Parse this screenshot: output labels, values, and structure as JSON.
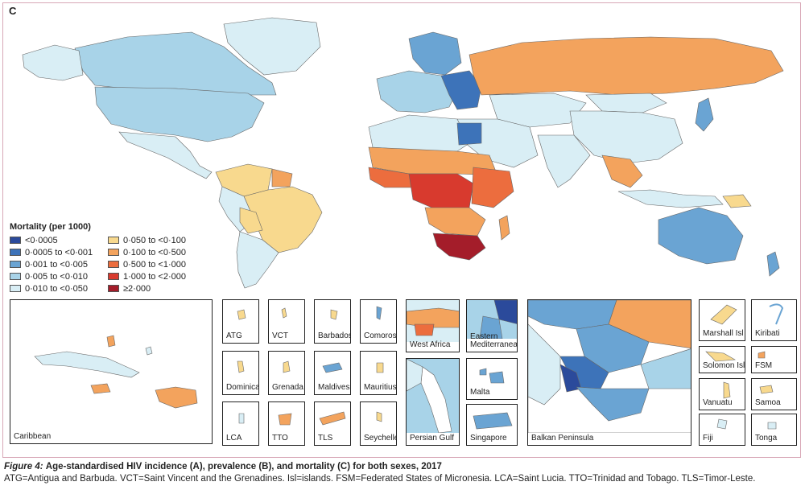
{
  "panel_letter": "C",
  "legend": {
    "title": "Mortality (per 1000)",
    "items": [
      {
        "label": "<0·0005",
        "color": "#2b4a9b"
      },
      {
        "label": "0·0005 to <0·001",
        "color": "#3d73b9"
      },
      {
        "label": "0·001 to <0·005",
        "color": "#6aa4d3"
      },
      {
        "label": "0·005 to <0·010",
        "color": "#a8d3e8"
      },
      {
        "label": "0·010 to <0·050",
        "color": "#d9eef5"
      },
      {
        "label": "0·050 to <0·100",
        "color": "#f8d98e"
      },
      {
        "label": "0·100 to <0·500",
        "color": "#f3a35d"
      },
      {
        "label": "0·500 to <1·000",
        "color": "#ec6d3e"
      },
      {
        "label": "1·000 to <2·000",
        "color": "#d83a2e"
      },
      {
        "label": "≥2·000",
        "color": "#a41d2a"
      }
    ]
  },
  "insets": {
    "caribbean": "Caribbean",
    "atg": "ATG",
    "vct": "VCT",
    "barbados": "Barbados",
    "comoros": "Comoros",
    "dominica": "Dominica",
    "grenada": "Grenada",
    "maldives": "Maldives",
    "mauritius": "Mauritius",
    "lca": "LCA",
    "tto": "TTO",
    "tls": "TLS",
    "seychelles": "Seychelles",
    "west_africa": "West Africa",
    "eastern_med": "Eastern Mediterranean",
    "persian_gulf": "Persian Gulf",
    "malta": "Malta",
    "singapore": "Singapore",
    "balkan": "Balkan Peninsula",
    "marshall": "Marshall Isl",
    "kiribati": "Kiribati",
    "solomon": "Solomon Isl",
    "fsm": "FSM",
    "vanuatu": "Vanuatu",
    "samoa": "Samoa",
    "fiji": "Fiji",
    "tonga": "Tonga"
  },
  "caption": {
    "figure_label": "Figure 4:",
    "title": "Age-standardised HIV incidence (A), prevalence (B), and mortality (C) for both sexes, 2017",
    "abbreviations": "ATG=Antigua and Barbuda. VCT=Saint Vincent and the Grenadines. Isl=islands. FSM=Federated States of Micronesia. LCA=Saint Lucia. TTO=Trinidad and Tobago. TLS=Timor-Leste."
  }
}
